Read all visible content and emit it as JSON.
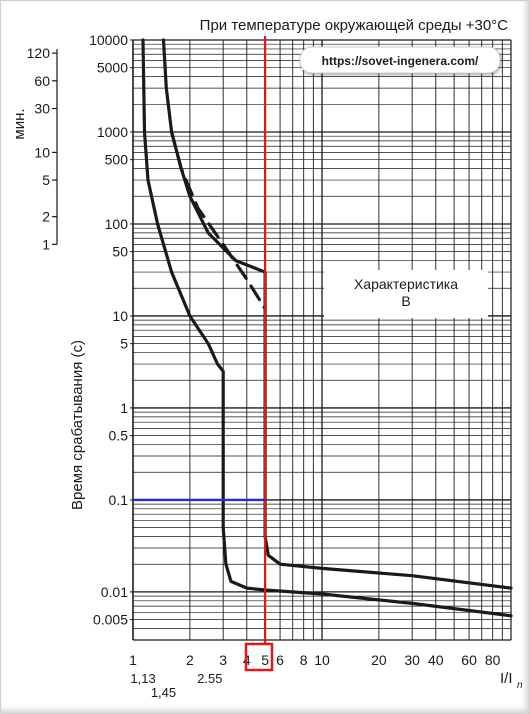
{
  "chart_data": {
    "type": "line",
    "title": "При температуре окружающей среды +30°C",
    "watermark": "https://sovet-ingenera.com/",
    "annotation": [
      "Характеристика",
      "B"
    ],
    "xlabel": "I/In",
    "ylabel": "Время срабатывания (с)",
    "minutes_label": "мин.",
    "x_scale": "log",
    "y_scale": "log",
    "xlim": [
      1,
      100
    ],
    "ylim": [
      0.003,
      10000
    ],
    "grid": true,
    "x_ticks": [
      {
        "v": 1,
        "label": "1"
      },
      {
        "v": 2,
        "label": "2"
      },
      {
        "v": 3,
        "label": "3"
      },
      {
        "v": 4,
        "label": "4"
      },
      {
        "v": 5,
        "label": "5"
      },
      {
        "v": 6,
        "label": "6"
      },
      {
        "v": 8,
        "label": "8"
      },
      {
        "v": 10,
        "label": "10"
      },
      {
        "v": 20,
        "label": "20"
      },
      {
        "v": 30,
        "label": "30"
      },
      {
        "v": 40,
        "label": "40"
      },
      {
        "v": 60,
        "label": "60"
      },
      {
        "v": 80,
        "label": "80"
      }
    ],
    "x_ticks_extra": [
      {
        "v": 1.13,
        "label": "1,13",
        "row": 1
      },
      {
        "v": 1.45,
        "label": "1,45",
        "row": 2
      },
      {
        "v": 2.55,
        "label": "2.55",
        "row": 1
      }
    ],
    "y_ticks": [
      {
        "v": 10000,
        "label": "10000"
      },
      {
        "v": 5000,
        "label": "5000"
      },
      {
        "v": 1000,
        "label": "1000"
      },
      {
        "v": 500,
        "label": "500"
      },
      {
        "v": 100,
        "label": "100"
      },
      {
        "v": 50,
        "label": "50"
      },
      {
        "v": 10,
        "label": "10"
      },
      {
        "v": 5,
        "label": "5"
      },
      {
        "v": 1,
        "label": "1"
      },
      {
        "v": 0.5,
        "label": "0.5"
      },
      {
        "v": 0.1,
        "label": "0.1"
      },
      {
        "v": 0.01,
        "label": "0.01"
      },
      {
        "v": 0.005,
        "label": "0.005"
      }
    ],
    "min_ticks": [
      {
        "v": 120,
        "label": "120"
      },
      {
        "v": 60,
        "label": "60"
      },
      {
        "v": 30,
        "label": "30"
      },
      {
        "v": 10,
        "label": "10"
      },
      {
        "v": 5,
        "label": "5"
      },
      {
        "v": 2,
        "label": "2"
      },
      {
        "v": 1,
        "label": "1"
      }
    ],
    "series": [
      {
        "style": "solid",
        "points": [
          [
            1.13,
            10000
          ],
          [
            1.15,
            1000
          ],
          [
            1.2,
            300
          ],
          [
            1.35,
            100
          ],
          [
            1.6,
            30
          ],
          [
            2.0,
            10
          ],
          [
            2.5,
            5
          ],
          [
            2.8,
            3
          ],
          [
            3.0,
            2.5
          ],
          [
            3.0,
            0.05
          ],
          [
            3.1,
            0.02
          ],
          [
            3.3,
            0.013
          ],
          [
            4.0,
            0.011
          ],
          [
            5.0,
            0.0105
          ],
          [
            10,
            0.0095
          ],
          [
            30,
            0.0075
          ],
          [
            100,
            0.0055
          ]
        ]
      },
      {
        "style": "solid",
        "points": [
          [
            1.45,
            10000
          ],
          [
            1.5,
            3000
          ],
          [
            1.6,
            1000
          ],
          [
            1.8,
            400
          ],
          [
            2.0,
            200
          ],
          [
            2.5,
            80
          ],
          [
            3.5,
            40
          ],
          [
            5.0,
            30
          ],
          [
            5.0,
            0.04
          ],
          [
            5.2,
            0.025
          ],
          [
            6.0,
            0.02
          ],
          [
            10,
            0.018
          ],
          [
            30,
            0.015
          ],
          [
            100,
            0.011
          ]
        ]
      },
      {
        "style": "dashed",
        "points": [
          [
            1.6,
            1000
          ],
          [
            1.8,
            400
          ],
          [
            2.2,
            150
          ],
          [
            3.0,
            60
          ],
          [
            4.0,
            25
          ],
          [
            5.0,
            12
          ]
        ]
      }
    ],
    "markers": {
      "vertical_x": 5,
      "vertical_color": "#e01818",
      "horizontal_y": 0.1,
      "horizontal_color": "#1e2fd8",
      "highlight_label": "5",
      "highlight_color": "#e01818"
    }
  }
}
